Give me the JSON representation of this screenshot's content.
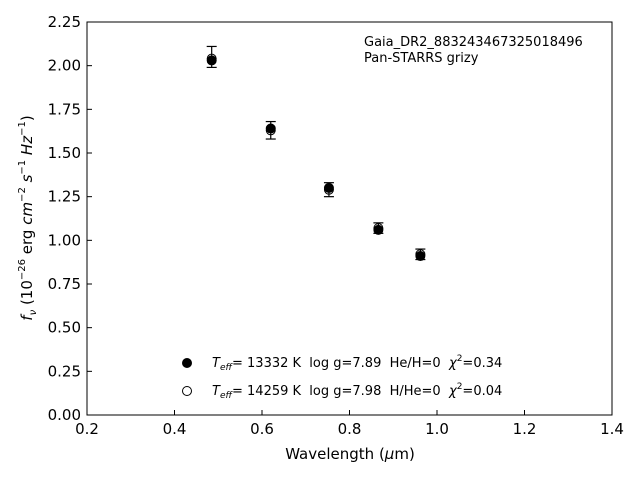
{
  "chart_data": {
    "type": "scatter",
    "xlabel_main": "Wavelength (",
    "xlabel_mu": "μ",
    "xlabel_tail": "m)",
    "ylabel": "f_ν (10^-26 erg cm^-2 s^-1 Hz^-1)",
    "xlim": [
      0.2,
      1.4
    ],
    "ylim": [
      0.0,
      2.25
    ],
    "xticks": [
      "0.2",
      "0.4",
      "0.6",
      "0.8",
      "1.0",
      "1.2",
      "1.4"
    ],
    "yticks": [
      "0.00",
      "0.25",
      "0.50",
      "0.75",
      "1.00",
      "1.25",
      "1.50",
      "1.75",
      "2.00",
      "2.25"
    ],
    "annotations": [
      "Gaia_DR2_883243467325018496",
      "Pan-STARRS grizy"
    ],
    "observed": {
      "x": [
        0.485,
        0.62,
        0.753,
        0.866,
        0.962
      ],
      "y": [
        2.05,
        1.63,
        1.29,
        1.07,
        0.92
      ],
      "yerr": [
        0.06,
        0.05,
        0.04,
        0.03,
        0.03
      ]
    },
    "series": [
      {
        "marker": "filled",
        "x": [
          0.485,
          0.62,
          0.753,
          0.866,
          0.962
        ],
        "y": [
          2.03,
          1.64,
          1.3,
          1.06,
          0.91
        ]
      },
      {
        "marker": "open",
        "x": [
          0.485,
          0.62,
          0.753,
          0.866,
          0.962
        ],
        "y": [
          2.04,
          1.63,
          1.29,
          1.07,
          0.92
        ]
      }
    ],
    "legend": [
      {
        "marker": "filled",
        "teff_value": "= 13332 K",
        "params": "  log g=7.89  He/H=0  ",
        "chi2": "=0.34"
      },
      {
        "marker": "open",
        "teff_value": "= 14259 K",
        "params": "  log g=7.98  H/He=0  ",
        "chi2": "=0.04"
      }
    ]
  }
}
